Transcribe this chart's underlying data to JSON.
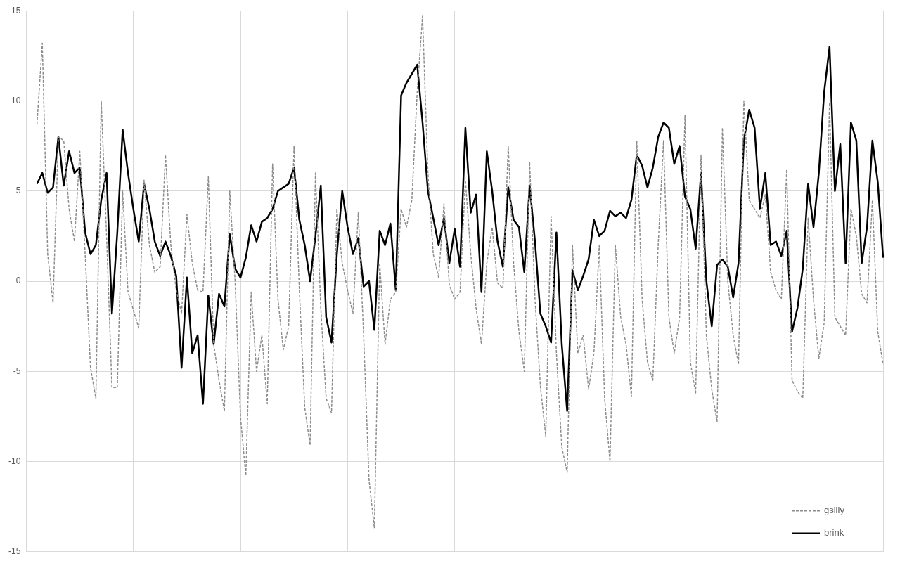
{
  "chart_data": {
    "type": "line",
    "categories": [
      null,
      null,
      null,
      null,
      null,
      null,
      null,
      null,
      null,
      null,
      null,
      null,
      null,
      null,
      null,
      null,
      null,
      null,
      null,
      null,
      null,
      null,
      null,
      null,
      null,
      null,
      null,
      null,
      null,
      null,
      null,
      null,
      null,
      null,
      null,
      null,
      null,
      null,
      null,
      null,
      null,
      null,
      null,
      null,
      null,
      null,
      null,
      null,
      null,
      null,
      null,
      null,
      null,
      null,
      null,
      null,
      null,
      null,
      null,
      null,
      null,
      null,
      null,
      null,
      null,
      null,
      null,
      null,
      null,
      null,
      null,
      null,
      null,
      null,
      null,
      null,
      null,
      null,
      null,
      null,
      null,
      null,
      null,
      null,
      null,
      null,
      null,
      null,
      null,
      null,
      null,
      null,
      null,
      null,
      null,
      null,
      null,
      null,
      null,
      null,
      null,
      null,
      null,
      null,
      null,
      null,
      null,
      null,
      null,
      null,
      null,
      null,
      null,
      null,
      null,
      null,
      null,
      null,
      null,
      null,
      null,
      null,
      null,
      null,
      null,
      null,
      null,
      null,
      null,
      null,
      null,
      null,
      null,
      null,
      null,
      null,
      null,
      null,
      null,
      null,
      null,
      null,
      null,
      null,
      null,
      null,
      null,
      null,
      null,
      null,
      null,
      null,
      null,
      null,
      null,
      null,
      null,
      null,
      null,
      null,
      null
    ],
    "ylim": [
      -15,
      15
    ],
    "yticks": [
      -15,
      -10,
      -5,
      0,
      5,
      10,
      15
    ],
    "tick_labels": "y",
    "grid": true,
    "legend": "bottom right",
    "marker": "none",
    "series": [
      {
        "name": "gsilly",
        "color": "#8c8c8c",
        "line_style": "dashed",
        "values": [
          null,
          null,
          8.7,
          13.2,
          1.5,
          -1.2,
          8.0,
          7.8,
          4,
          2.2,
          7.2,
          1.5,
          -4.8,
          -6.5,
          10,
          2.5,
          -5.9,
          -5.9,
          5.0,
          -0.6,
          -1.6,
          -2.6,
          5.6,
          2.0,
          0.5,
          0.8,
          7.0,
          2.0,
          -0.5,
          -1.8,
          3.7,
          1.0,
          -0.5,
          -0.6,
          5.8,
          -3.5,
          -5.5,
          -7.2,
          5.0,
          0.0,
          -7.5,
          -10.8,
          -0.6,
          -5.0,
          -3.0,
          -6.8,
          6.5,
          -1.0,
          -3.8,
          -2.5,
          7.5,
          -0.5,
          -7.0,
          -9.1,
          6.0,
          -1.5,
          -6.5,
          -7.3,
          4.0,
          1.0,
          -0.5,
          -1.8,
          3.8,
          -3.0,
          -11.0,
          -13.7,
          1.0,
          -3.5,
          -1.0,
          -0.6,
          4.0,
          3.0,
          4.5,
          10.5,
          14.7,
          6.0,
          1.5,
          0.2,
          4.3,
          -0.2,
          -1.0,
          -0.6,
          5.6,
          1.5,
          -1.5,
          -3.5,
          1.0,
          3.0,
          -0.1,
          -0.4,
          7.5,
          1.0,
          -2.8,
          -5.0,
          6.6,
          -1.0,
          -5.8,
          -8.6,
          3.6,
          -4.0,
          -9.2,
          -10.6,
          2.0,
          -4.0,
          -3.0,
          -6.0,
          -4.0,
          2.0,
          -6.5,
          -10.0,
          2.0,
          -2.0,
          -3.5,
          -6.4,
          7.8,
          -1.0,
          -4.5,
          -5.5,
          2.0,
          7.8,
          -2.0,
          -4.0,
          -2.0,
          9.2,
          -4.5,
          -6.2,
          7.0,
          -3.0,
          -6.0,
          -7.8,
          8.5,
          0.0,
          -3.0,
          -4.6,
          10.0,
          4.5,
          4.0,
          3.5,
          4.8,
          0.5,
          -0.5,
          -1.0,
          6.2,
          -5.5,
          -6.1,
          -6.5,
          3.5,
          -1.0,
          -4.3,
          -2.3,
          9.9,
          -2.0,
          -2.5,
          -3.0,
          4.0,
          2.5,
          -0.7,
          -1.2,
          4.5,
          -2.8,
          -4.6
        ]
      },
      {
        "name": "brink",
        "color": "#000000",
        "line_style": "solid",
        "values": [
          null,
          null,
          5.4,
          6.0,
          4.9,
          5.2,
          8.0,
          5.3,
          7.2,
          6.0,
          6.3,
          2.7,
          1.5,
          2.0,
          4.5,
          6.0,
          -1.8,
          2.7,
          8.4,
          6.0,
          4.0,
          2.2,
          5.4,
          4.0,
          2.2,
          1.4,
          2.2,
          1.4,
          0.3,
          -4.8,
          0.2,
          -4.0,
          -3.0,
          -6.8,
          -0.8,
          -3.5,
          -0.7,
          -1.4,
          2.6,
          0.7,
          0.2,
          1.3,
          3.1,
          2.2,
          3.3,
          3.5,
          4.0,
          5.0,
          5.2,
          5.4,
          6.3,
          3.4,
          2.0,
          0.0,
          2.5,
          5.3,
          -2.0,
          -3.4,
          1.5,
          5.0,
          3.0,
          1.5,
          2.4,
          -0.3,
          0.0,
          -2.7,
          2.8,
          2.0,
          3.2,
          -0.5,
          10.3,
          11.0,
          11.5,
          12.0,
          8.8,
          5.0,
          3.5,
          2.0,
          3.5,
          1.0,
          2.9,
          0.8,
          8.5,
          3.8,
          4.8,
          -0.6,
          7.2,
          5.0,
          2.2,
          0.8,
          5.2,
          3.4,
          3.0,
          0.5,
          5.3,
          2.2,
          -1.8,
          -2.5,
          -3.4,
          2.7,
          -3.5,
          -7.2,
          0.6,
          -0.5,
          0.3,
          1.2,
          3.4,
          2.5,
          2.8,
          3.9,
          3.6,
          3.8,
          3.5,
          4.5,
          7.0,
          6.4,
          5.2,
          6.3,
          8.0,
          8.8,
          8.5,
          6.5,
          7.5,
          4.7,
          4.0,
          1.8,
          6.0,
          0.0,
          -2.5,
          0.9,
          1.2,
          0.8,
          -0.9,
          1.0,
          7.8,
          9.5,
          8.5,
          4.0,
          6.0,
          2.0,
          2.2,
          1.4,
          2.8,
          -2.8,
          -1.5,
          0.7,
          5.4,
          3.0,
          6.0,
          10.5,
          13.0,
          5.0,
          7.6,
          1.0,
          8.8,
          7.8,
          1.0,
          3.0,
          7.8,
          5.5,
          1.3
        ]
      }
    ]
  }
}
